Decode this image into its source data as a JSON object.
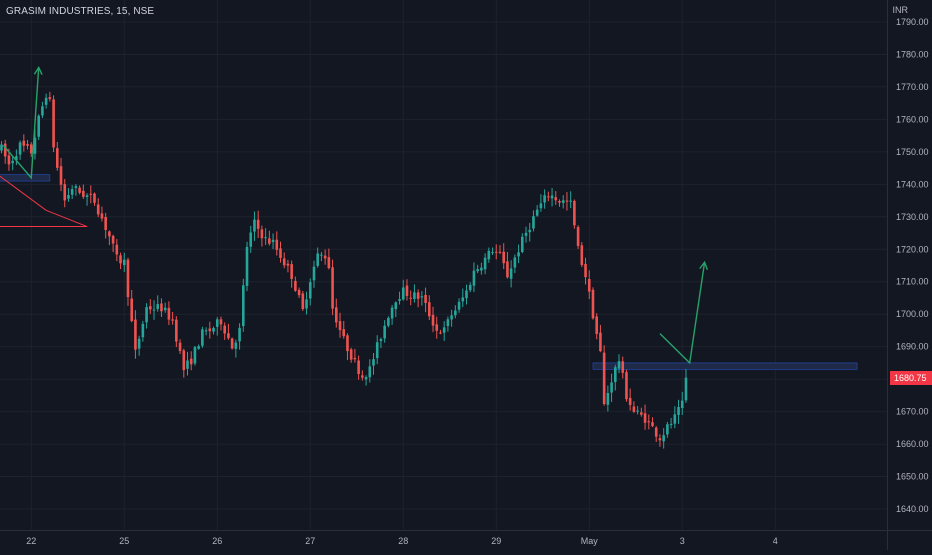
{
  "header": {
    "symbol_line": "GRASIM INDUSTRIES, 15, NSE",
    "currency": "INR"
  },
  "last_price": "1680.75",
  "colors": {
    "background": "#131722",
    "grid": "#1e222d",
    "up": "#26a69a",
    "down": "#ef5350",
    "axis_text": "#b2b5be",
    "price_tag": "#f23645",
    "drawing_green": "#26a269",
    "drawing_red": "#f23645",
    "zone_fill": "#1f2a48",
    "zone_stroke": "#2962ff"
  },
  "chart_data": {
    "type": "candlestick",
    "title": "GRASIM INDUSTRIES, 15, NSE",
    "ylabel": "INR",
    "ylim": [
      1636,
      1794
    ],
    "y_ticks": [
      1640,
      1650,
      1660,
      1670,
      1680,
      1690,
      1700,
      1710,
      1720,
      1730,
      1740,
      1750,
      1760,
      1770,
      1780,
      1790
    ],
    "y_tick_labels": [
      "1640.00",
      "1650.00",
      "1660.00",
      "1670.00",
      "1680.00",
      "1690.00",
      "1700.00",
      "1710.00",
      "1720.00",
      "1730.00",
      "1740.00",
      "1750.00",
      "1760.00",
      "1770.00",
      "1780.00",
      "1790.00"
    ],
    "x_tick_labels": [
      "22",
      "25",
      "26",
      "27",
      "28",
      "29",
      "May",
      "3",
      "4"
    ],
    "x_tick_index": [
      8,
      33,
      58,
      83,
      108,
      133,
      158,
      183,
      208
    ],
    "grid": true,
    "close_path": [
      [
        0,
        1751
      ],
      [
        2,
        1746
      ],
      [
        5,
        1752
      ],
      [
        8,
        1750
      ],
      [
        10,
        1760
      ],
      [
        12,
        1768
      ],
      [
        13,
        1765
      ],
      [
        14,
        1752
      ],
      [
        15,
        1745
      ],
      [
        17,
        1735
      ],
      [
        19,
        1739
      ],
      [
        22,
        1737
      ],
      [
        25,
        1735
      ],
      [
        29,
        1724
      ],
      [
        31,
        1717
      ],
      [
        33,
        1716
      ],
      [
        36,
        1688
      ],
      [
        39,
        1702
      ],
      [
        43,
        1702
      ],
      [
        46,
        1698
      ],
      [
        49,
        1683
      ],
      [
        51,
        1686
      ],
      [
        54,
        1694
      ],
      [
        56,
        1695
      ],
      [
        59,
        1698
      ],
      [
        62,
        1690
      ],
      [
        64,
        1695
      ],
      [
        66,
        1721
      ],
      [
        68,
        1728
      ],
      [
        71,
        1723
      ],
      [
        73,
        1722
      ],
      [
        75,
        1718
      ],
      [
        78,
        1712
      ],
      [
        81,
        1701
      ],
      [
        83,
        1711
      ],
      [
        85,
        1718
      ],
      [
        87,
        1718
      ],
      [
        88,
        1715
      ],
      [
        89,
        1702
      ],
      [
        92,
        1692
      ],
      [
        95,
        1685
      ],
      [
        97,
        1681
      ],
      [
        99,
        1683
      ],
      [
        101,
        1690
      ],
      [
        104,
        1700
      ],
      [
        106,
        1705
      ],
      [
        108,
        1707
      ],
      [
        110,
        1706
      ],
      [
        113,
        1705
      ],
      [
        115,
        1700
      ],
      [
        117,
        1695
      ],
      [
        119,
        1695
      ],
      [
        121,
        1700
      ],
      [
        123,
        1703
      ],
      [
        125,
        1707
      ],
      [
        127,
        1713
      ],
      [
        130,
        1717
      ],
      [
        132,
        1720
      ],
      [
        134,
        1718
      ],
      [
        136,
        1712
      ],
      [
        139,
        1720
      ],
      [
        141,
        1725
      ],
      [
        144,
        1732
      ],
      [
        147,
        1737
      ],
      [
        150,
        1735
      ],
      [
        153,
        1734
      ],
      [
        155,
        1720
      ],
      [
        157,
        1712
      ],
      [
        159,
        1700
      ],
      [
        161,
        1688
      ],
      [
        162,
        1672
      ],
      [
        164,
        1680
      ],
      [
        166,
        1686
      ],
      [
        168,
        1675
      ],
      [
        170,
        1670
      ],
      [
        173,
        1668
      ],
      [
        175,
        1665
      ],
      [
        177,
        1662
      ],
      [
        179,
        1665
      ],
      [
        181,
        1668
      ],
      [
        183,
        1672
      ],
      [
        184,
        1680
      ]
    ],
    "drawings": [
      {
        "kind": "arrow",
        "color": "green",
        "points": [
          [
            0.5,
            1752
          ],
          [
            8,
            1742
          ],
          [
            10,
            1776
          ]
        ]
      },
      {
        "kind": "arrow",
        "color": "green",
        "points": [
          [
            177,
            1694
          ],
          [
            185,
            1685
          ],
          [
            189,
            1716
          ]
        ]
      },
      {
        "kind": "zone",
        "color": "blue",
        "x": [
          -1,
          13
        ],
        "y": [
          1741,
          1743
        ]
      },
      {
        "kind": "zone",
        "color": "blue",
        "x": [
          159,
          230
        ],
        "y": [
          1683,
          1685
        ]
      },
      {
        "kind": "triangle",
        "color": "red",
        "points": [
          [
            -1,
            1743
          ],
          [
            12,
            1732
          ],
          [
            -1,
            1727
          ],
          [
            23,
            1727
          ]
        ]
      }
    ]
  }
}
